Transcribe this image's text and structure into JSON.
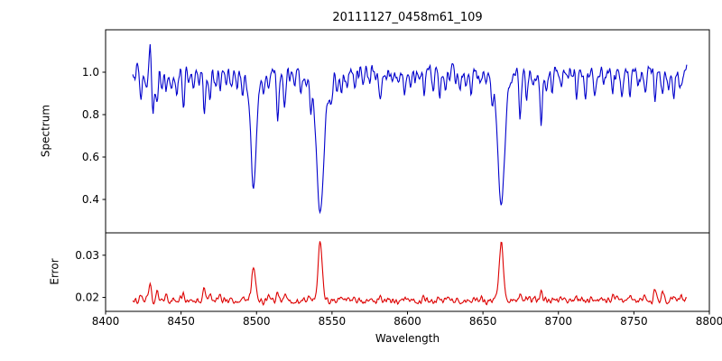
{
  "chart_data": {
    "type": "line",
    "title": "20111127_0458m61_109",
    "xlabel": "Wavelength",
    "xlim": [
      8400,
      8800
    ],
    "x_ticks": [
      8400,
      8450,
      8500,
      8550,
      8600,
      8650,
      8700,
      8750,
      8800
    ],
    "x_start": 8418,
    "x_end": 8785,
    "sample_step": 0.5,
    "noise_seed": 20111127,
    "panels": [
      {
        "name": "spectrum",
        "ylabel": "Spectrum",
        "color": "#0000cc",
        "ylim": [
          0.2426,
          1.2
        ],
        "y_ticks": [
          0.4,
          0.6,
          0.8,
          1.0
        ],
        "y_tick_labels": [
          "0.4",
          "0.6",
          "0.8",
          "1.0"
        ],
        "continuum": 1.0,
        "noise_amplitude": 0.055,
        "minor_sigma": 0.7,
        "absorption_lines": [
          {
            "center": 8498.0,
            "depth": 0.46,
            "sigma": 1.6
          },
          {
            "center": 8498.0,
            "depth": 0.1,
            "sigma": 4.0
          },
          {
            "center": 8542.1,
            "depth": 0.54,
            "sigma": 2.2
          },
          {
            "center": 8542.1,
            "depth": 0.13,
            "sigma": 6.0
          },
          {
            "center": 8662.1,
            "depth": 0.52,
            "sigma": 2.0
          },
          {
            "center": 8662.1,
            "depth": 0.11,
            "sigma": 5.0
          }
        ],
        "emission_spikes": [
          {
            "center": 8429.5,
            "height": 0.13,
            "sigma": 0.5
          }
        ],
        "minor_lines": [
          [
            8423.5,
            0.12
          ],
          [
            8427.0,
            0.08
          ],
          [
            8431.5,
            0.2
          ],
          [
            8434.0,
            0.16
          ],
          [
            8437.0,
            0.07
          ],
          [
            8440.0,
            0.1
          ],
          [
            8444.0,
            0.06
          ],
          [
            8447.0,
            0.1
          ],
          [
            8451.5,
            0.16
          ],
          [
            8455.0,
            0.06
          ],
          [
            8458.0,
            0.08
          ],
          [
            8462.0,
            0.06
          ],
          [
            8465.5,
            0.2
          ],
          [
            8469.0,
            0.12
          ],
          [
            8472.5,
            0.07
          ],
          [
            8476.0,
            0.09
          ],
          [
            8480.0,
            0.06
          ],
          [
            8483.0,
            0.07
          ],
          [
            8487.0,
            0.06
          ],
          [
            8490.5,
            0.08
          ],
          [
            8505.0,
            0.07
          ],
          [
            8508.0,
            0.1
          ],
          [
            8514.0,
            0.22
          ],
          [
            8518.5,
            0.16
          ],
          [
            8522.0,
            0.07
          ],
          [
            8525.0,
            0.08
          ],
          [
            8529.0,
            0.06
          ],
          [
            8536.0,
            0.1
          ],
          [
            8549.5,
            0.08
          ],
          [
            8553.0,
            0.06
          ],
          [
            8556.0,
            0.09
          ],
          [
            8560.0,
            0.06
          ],
          [
            8565.0,
            0.07
          ],
          [
            8571.0,
            0.06
          ],
          [
            8575.0,
            0.05
          ],
          [
            8582.0,
            0.08
          ],
          [
            8586.0,
            0.05
          ],
          [
            8590.0,
            0.06
          ],
          [
            8594.0,
            0.05
          ],
          [
            8598.0,
            0.11
          ],
          [
            8602.0,
            0.06
          ],
          [
            8605.0,
            0.07
          ],
          [
            8611.0,
            0.09
          ],
          [
            8617.0,
            0.07
          ],
          [
            8621.5,
            0.12
          ],
          [
            8625.0,
            0.06
          ],
          [
            8628.0,
            0.07
          ],
          [
            8632.0,
            0.05
          ],
          [
            8635.0,
            0.06
          ],
          [
            8639.0,
            0.05
          ],
          [
            8642.0,
            0.08
          ],
          [
            8648.0,
            0.09
          ],
          [
            8652.0,
            0.06
          ],
          [
            8656.0,
            0.07
          ],
          [
            8674.5,
            0.22
          ],
          [
            8679.0,
            0.13
          ],
          [
            8683.0,
            0.07
          ],
          [
            8688.5,
            0.26
          ],
          [
            8692.0,
            0.08
          ],
          [
            8696.0,
            0.08
          ],
          [
            8702.0,
            0.07
          ],
          [
            8706.0,
            0.06
          ],
          [
            8712.0,
            0.11
          ],
          [
            8718.0,
            0.09
          ],
          [
            8724.0,
            0.07
          ],
          [
            8730.0,
            0.06
          ],
          [
            8736.0,
            0.09
          ],
          [
            8742.0,
            0.07
          ],
          [
            8747.5,
            0.11
          ],
          [
            8753.0,
            0.07
          ],
          [
            8757.5,
            0.09
          ],
          [
            8764.0,
            0.13
          ],
          [
            8769.0,
            0.09
          ],
          [
            8773.0,
            0.06
          ],
          [
            8776.5,
            0.09
          ],
          [
            8781.0,
            0.07
          ]
        ]
      },
      {
        "name": "error",
        "ylabel": "Error",
        "color": "#dd0000",
        "ylim": [
          0.0167,
          0.0353
        ],
        "y_ticks": [
          0.02,
          0.03
        ],
        "y_tick_labels": [
          "0.02",
          "0.03"
        ],
        "baseline": 0.0193,
        "noise_amplitude": 0.06,
        "minor_sigma": 0.8,
        "peaks": [
          {
            "center": 8498.0,
            "height": 0.0085,
            "sigma": 1.2
          },
          {
            "center": 8542.1,
            "height": 0.014,
            "sigma": 1.4
          },
          {
            "center": 8662.1,
            "height": 0.0135,
            "sigma": 1.4
          }
        ],
        "minor_peaks": [
          [
            8423.5,
            0.0016
          ],
          [
            8429.5,
            0.004
          ],
          [
            8434.0,
            0.002
          ],
          [
            8440.0,
            0.001
          ],
          [
            8451.5,
            0.0014
          ],
          [
            8465.5,
            0.0028
          ],
          [
            8469.0,
            0.0014
          ],
          [
            8476.0,
            0.0008
          ],
          [
            8490.5,
            0.0008
          ],
          [
            8508.0,
            0.0009
          ],
          [
            8514.0,
            0.0018
          ],
          [
            8518.5,
            0.0012
          ],
          [
            8536.0,
            0.0009
          ],
          [
            8556.0,
            0.0007
          ],
          [
            8582.0,
            0.0007
          ],
          [
            8598.0,
            0.0009
          ],
          [
            8611.0,
            0.0007
          ],
          [
            8621.5,
            0.001
          ],
          [
            8648.0,
            0.0008
          ],
          [
            8674.5,
            0.0012
          ],
          [
            8679.0,
            0.0009
          ],
          [
            8688.5,
            0.0016
          ],
          [
            8702.0,
            0.0006
          ],
          [
            8712.0,
            0.0009
          ],
          [
            8736.0,
            0.0007
          ],
          [
            8747.5,
            0.001
          ],
          [
            8757.5,
            0.0009
          ],
          [
            8764.0,
            0.0026
          ],
          [
            8769.0,
            0.0022
          ],
          [
            8776.5,
            0.0016
          ],
          [
            8781.0,
            0.001
          ]
        ]
      }
    ]
  }
}
